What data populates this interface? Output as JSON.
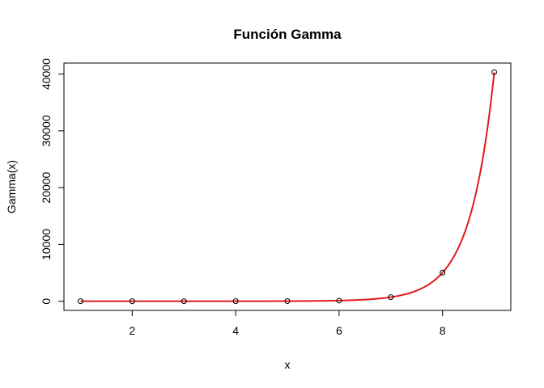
{
  "chart_data": {
    "type": "line",
    "title": "Función Gamma",
    "xlabel": "x",
    "ylabel": "Gamma(x)",
    "xlim": [
      0.68,
      9.32
    ],
    "ylim": [
      -1613,
      41933
    ],
    "xticks": [
      2,
      4,
      6,
      8
    ],
    "yticks": [
      0,
      10000,
      20000,
      30000,
      40000
    ],
    "grid": false,
    "legend": "none",
    "series": [
      {
        "kind": "points",
        "color": "#000000",
        "x": [
          1,
          2,
          3,
          4,
          5,
          6,
          7,
          8,
          9
        ],
        "y": [
          1,
          1,
          2,
          6,
          24,
          120,
          720,
          5040,
          40320
        ]
      },
      {
        "kind": "curve",
        "function": "gamma",
        "color": "#e31a1c",
        "x_range": [
          1,
          9
        ]
      }
    ]
  }
}
